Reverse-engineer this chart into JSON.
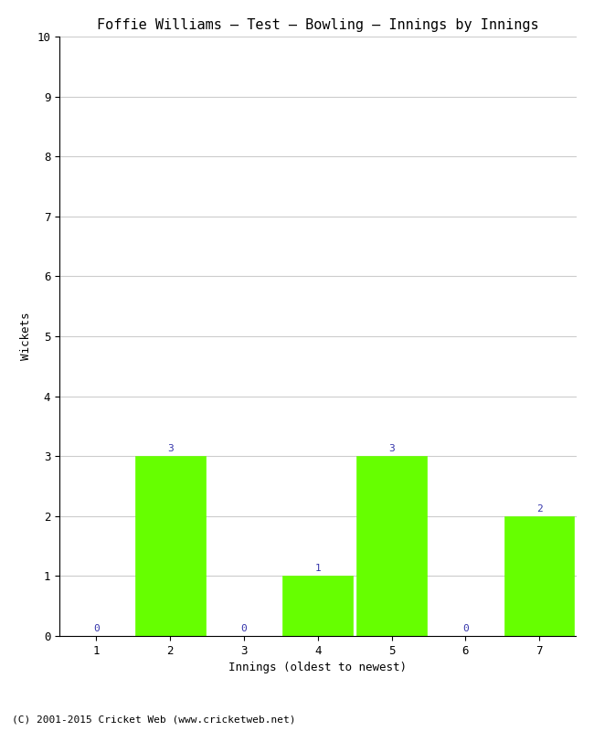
{
  "title": "Foffie Williams – Test – Bowling – Innings by Innings",
  "xlabel": "Innings (oldest to newest)",
  "ylabel": "Wickets",
  "categories": [
    "1",
    "2",
    "3",
    "4",
    "5",
    "6",
    "7"
  ],
  "values": [
    0,
    3,
    0,
    1,
    3,
    0,
    2
  ],
  "bar_color": "#66ff00",
  "bar_edge_color": "#66ff00",
  "ylim": [
    0,
    10
  ],
  "yticks": [
    0,
    1,
    2,
    3,
    4,
    5,
    6,
    7,
    8,
    9,
    10
  ],
  "annotation_color": "#3333aa",
  "annotation_fontsize": 8,
  "title_fontsize": 11,
  "tick_fontsize": 9,
  "label_fontsize": 9,
  "background_color": "#ffffff",
  "footer_text": "(C) 2001-2015 Cricket Web (www.cricketweb.net)",
  "footer_fontsize": 8,
  "grid_color": "#cccccc",
  "bar_width": 0.95
}
